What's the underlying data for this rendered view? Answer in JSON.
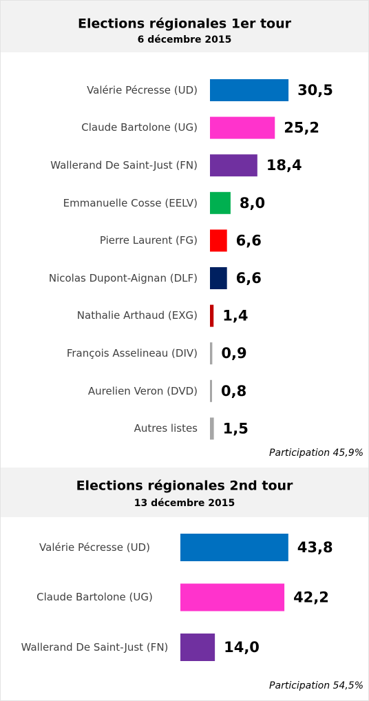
{
  "chart_data": [
    {
      "type": "barh",
      "title": "Elections régionales 1er tour",
      "subtitle": "6 décembre 2015",
      "categories": [
        "Valérie Pécresse (UD)",
        "Claude Bartolone (UG)",
        "Wallerand De Saint-Just (FN)",
        "Emmanuelle Cosse (EELV)",
        "Pierre Laurent (FG)",
        "Nicolas Dupont-Aignan (DLF)",
        "Nathalie Arthaud (EXG)",
        "François Asselineau (DIV)",
        "Aurelien Veron (DVD)",
        "Autres listes"
      ],
      "values": [
        30.5,
        25.2,
        18.4,
        8.0,
        6.6,
        6.6,
        1.4,
        0.9,
        0.8,
        1.5
      ],
      "value_labels": [
        "30,5",
        "25,2",
        "18,4",
        "8,0",
        "6,6",
        "6,6",
        "1,4",
        "0,9",
        "0,8",
        "1,5"
      ],
      "colors": [
        "#0070c0",
        "#ff33cc",
        "#7030a0",
        "#00b050",
        "#ff0000",
        "#002060",
        "#c00000",
        "#a6a6a6",
        "#a6a6a6",
        "#a6a6a6"
      ],
      "annotation": "Participation 45,9%"
    },
    {
      "type": "barh",
      "title": "Elections régionales 2nd tour",
      "subtitle": "13 décembre 2015",
      "categories": [
        "Valérie Pécresse (UD)",
        "Claude Bartolone (UG)",
        "Wallerand De Saint-Just (FN)"
      ],
      "values": [
        43.8,
        42.2,
        14.0
      ],
      "value_labels": [
        "43,8",
        "42,2",
        "14,0"
      ],
      "colors": [
        "#0070c0",
        "#ff33cc",
        "#7030a0"
      ],
      "annotation": "Participation 54,5%"
    }
  ]
}
